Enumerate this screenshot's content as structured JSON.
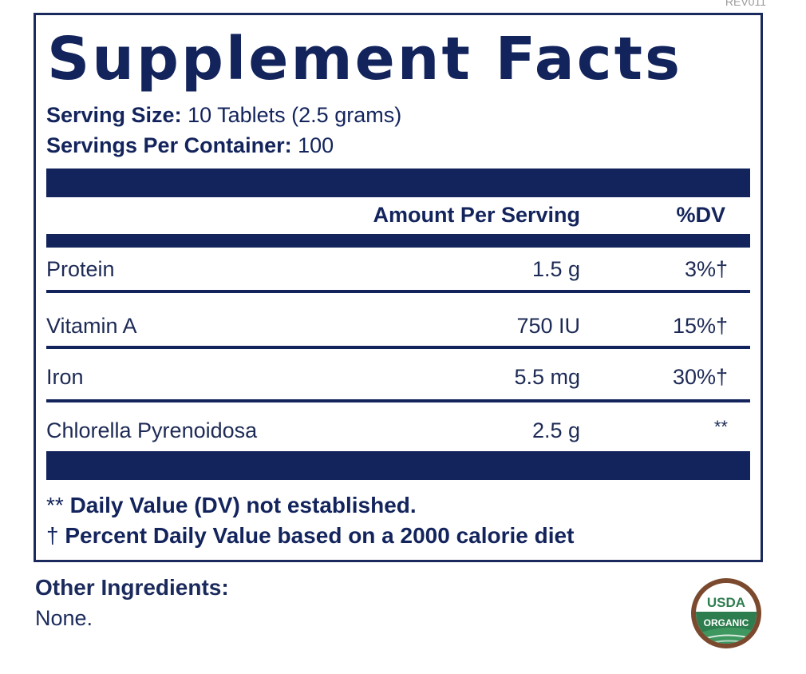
{
  "revision": "REV011",
  "title": "Supplement Facts",
  "serving_size": {
    "label": "Serving Size:",
    "value": "10 Tablets (2.5 grams)"
  },
  "servings_per_container": {
    "label": "Servings Per Container:",
    "value": "100"
  },
  "headers": {
    "amount": "Amount Per Serving",
    "dv": "%DV"
  },
  "nutrients": [
    {
      "name": "Protein",
      "amount": "1.5 g",
      "dv": "3%†"
    },
    {
      "name": "Vitamin A",
      "amount": "750 IU",
      "dv": "15%†"
    },
    {
      "name": "Iron",
      "amount": "5.5 mg",
      "dv": "30%†"
    },
    {
      "name": "Chlorella Pyrenoidosa",
      "amount": "2.5 g",
      "dv": "**"
    }
  ],
  "footnotes": {
    "dv_symbol": "**",
    "dv_text": "Daily Value (DV) not established.",
    "pct_symbol": "†",
    "pct_text": "Percent Daily Value based on a 2000 calorie diet"
  },
  "other_ingredients": {
    "label": "Other Ingredients:",
    "value": "None."
  },
  "seal": {
    "line1": "USDA",
    "line2": "ORGANIC"
  },
  "colors": {
    "navy": "#13245c",
    "seal_brown": "#7b4a2e",
    "seal_green": "#2e7d4f"
  }
}
